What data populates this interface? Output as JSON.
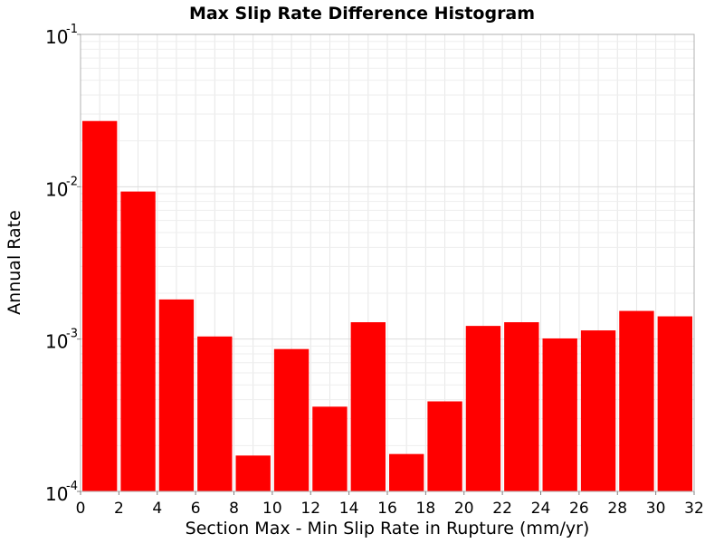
{
  "chart_data": {
    "type": "bar",
    "title": "Max Slip Rate Difference Histogram",
    "xlabel": "Section Max - Min Slip Rate in Rupture (mm/yr)",
    "ylabel": "Annual Rate",
    "y_scale": "log",
    "xlim": [
      0,
      32
    ],
    "ylim": [
      0.0001,
      0.1
    ],
    "x_ticks": [
      "0",
      "2",
      "4",
      "6",
      "8",
      "10",
      "12",
      "14",
      "16",
      "18",
      "20",
      "22",
      "24",
      "26",
      "28",
      "30",
      "32"
    ],
    "y_ticks": [
      {
        "base": "10",
        "exp": "-4",
        "value": 0.0001
      },
      {
        "base": "10",
        "exp": "-3",
        "value": 0.001
      },
      {
        "base": "10",
        "exp": "-2",
        "value": 0.01
      },
      {
        "base": "10",
        "exp": "-1",
        "value": 0.1
      }
    ],
    "bin_width": 2,
    "bins": [
      {
        "x_start": 0,
        "value": 0.027
      },
      {
        "x_start": 2,
        "value": 0.0093
      },
      {
        "x_start": 4,
        "value": 0.00182
      },
      {
        "x_start": 6,
        "value": 0.00104
      },
      {
        "x_start": 8,
        "value": 0.000172
      },
      {
        "x_start": 10,
        "value": 0.00086
      },
      {
        "x_start": 12,
        "value": 0.00036
      },
      {
        "x_start": 14,
        "value": 0.00129
      },
      {
        "x_start": 16,
        "value": 0.000176
      },
      {
        "x_start": 18,
        "value": 0.00039
      },
      {
        "x_start": 20,
        "value": 0.00122
      },
      {
        "x_start": 22,
        "value": 0.00129
      },
      {
        "x_start": 24,
        "value": 0.00101
      },
      {
        "x_start": 26,
        "value": 0.00114
      },
      {
        "x_start": 28,
        "value": 0.00153
      },
      {
        "x_start": 30,
        "value": 0.00141
      }
    ],
    "bar_color": "#ff0000",
    "grid": true,
    "legend": "none"
  }
}
